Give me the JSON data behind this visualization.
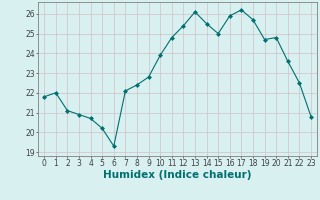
{
  "x": [
    0,
    1,
    2,
    3,
    4,
    5,
    6,
    7,
    8,
    9,
    10,
    11,
    12,
    13,
    14,
    15,
    16,
    17,
    18,
    19,
    20,
    21,
    22,
    23
  ],
  "y": [
    21.8,
    22.0,
    21.1,
    20.9,
    20.7,
    20.2,
    19.3,
    22.1,
    22.4,
    22.8,
    23.9,
    24.8,
    25.4,
    26.1,
    25.5,
    25.0,
    25.9,
    26.2,
    25.7,
    24.7,
    24.8,
    23.6,
    22.5,
    20.8
  ],
  "line_color": "#007070",
  "marker": "D",
  "marker_size": 2.0,
  "bg_color": "#d8f0f0",
  "grid_color": "#d0c0c8",
  "axis_color": "#404040",
  "xlabel": "Humidex (Indice chaleur)",
  "ylim": [
    18.8,
    26.6
  ],
  "yticks": [
    19,
    20,
    21,
    22,
    23,
    24,
    25,
    26
  ],
  "xticks": [
    0,
    1,
    2,
    3,
    4,
    5,
    6,
    7,
    8,
    9,
    10,
    11,
    12,
    13,
    14,
    15,
    16,
    17,
    18,
    19,
    20,
    21,
    22,
    23
  ],
  "tick_fontsize": 5.5,
  "label_fontsize": 7.5
}
